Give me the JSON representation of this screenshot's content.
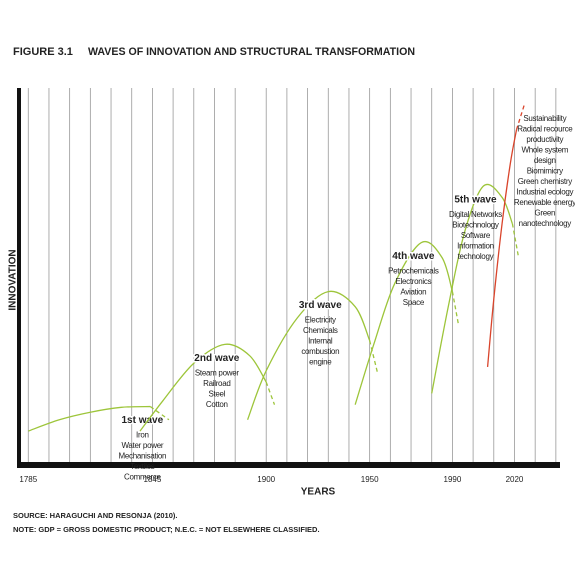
{
  "chart_data": {
    "type": "line",
    "figure_number": "FIGURE 3.1",
    "title": "WAVES OF INNOVATION AND STRUCTURAL TRANSFORMATION",
    "ylabel": "INNOVATION",
    "xlabel": "YEARS",
    "xlim": [
      1781,
      2042
    ],
    "ylim": [
      0,
      100
    ],
    "xticks": [
      1785,
      1845,
      1900,
      1950,
      1990,
      2020
    ],
    "minor_xticks": [
      1795,
      1805,
      1815,
      1825,
      1835,
      1855,
      1865,
      1875,
      1885,
      1910,
      1920,
      1930,
      1940,
      1960,
      1970,
      1980,
      2000,
      2010,
      2030,
      2040
    ],
    "grid": true,
    "series": [
      {
        "name": "1st wave",
        "color": "#9dc53a",
        "x": [
          1785,
          1800,
          1815,
          1830,
          1844,
          1853
        ],
        "values": [
          9,
          12,
          14,
          15.3,
          15.5,
          12
        ],
        "dash_start": 4,
        "items": [
          "Iron",
          "Water power",
          "Mechanisation",
          "Textiles",
          "Commerce"
        ]
      },
      {
        "name": "2nd wave",
        "color": "#9dc53a",
        "x": [
          1839,
          1850,
          1865,
          1880,
          1892,
          1900,
          1904
        ],
        "values": [
          9,
          17,
          27,
          32,
          29,
          22,
          16
        ],
        "dash_start": 5,
        "items": [
          "Steam power",
          "Railroad",
          "Steel",
          "Cotton"
        ]
      },
      {
        "name": "3rd wave",
        "color": "#9dc53a",
        "x": [
          1891,
          1900,
          1915,
          1930,
          1943,
          1950,
          1954
        ],
        "values": [
          12,
          25,
          39,
          46,
          42,
          33,
          24
        ],
        "dash_start": 5,
        "items": [
          "Electricity",
          "Chemicals",
          "Internal",
          "combustion",
          "engine"
        ]
      },
      {
        "name": "4th wave",
        "color": "#9dc53a",
        "x": [
          1943,
          1952,
          1962,
          1975,
          1985,
          1990,
          1993
        ],
        "values": [
          16,
          32,
          48,
          59,
          55,
          46,
          37
        ],
        "dash_start": 5,
        "items": [
          "Petrochemicals",
          "Electronics",
          "Aviation",
          "Space"
        ]
      },
      {
        "name": "5th wave",
        "color": "#9dc53a",
        "x": [
          1980,
          1988,
          1996,
          2005,
          2014,
          2019,
          2022
        ],
        "values": [
          19,
          42,
          62,
          74,
          71,
          64,
          55
        ],
        "dash_start": 5,
        "items": [
          "Digital Networks",
          "Biotechnology",
          "Software",
          "Information",
          "technology"
        ]
      },
      {
        "color": "#d9442b",
        "x": [
          2007,
          2010,
          2014,
          2018,
          2021,
          2025
        ],
        "values": [
          26,
          44,
          64,
          80,
          89,
          96
        ],
        "dash_start": 4,
        "items": [
          "Sustainability",
          "Radical recource",
          "productivity",
          "Whole system",
          "design",
          "Biomimicry",
          "Green chemistry",
          "Industrial ecology",
          "Renewable energy",
          "Green",
          "nanotechnology"
        ]
      }
    ],
    "source": "SOURCE: HARAGUCHI AND RESONJA (2010).",
    "note": "NOTE: GDP = GROSS DOMESTIC PRODUCT; N.E.C. = NOT ELSEWHERE CLASSIFIED."
  }
}
